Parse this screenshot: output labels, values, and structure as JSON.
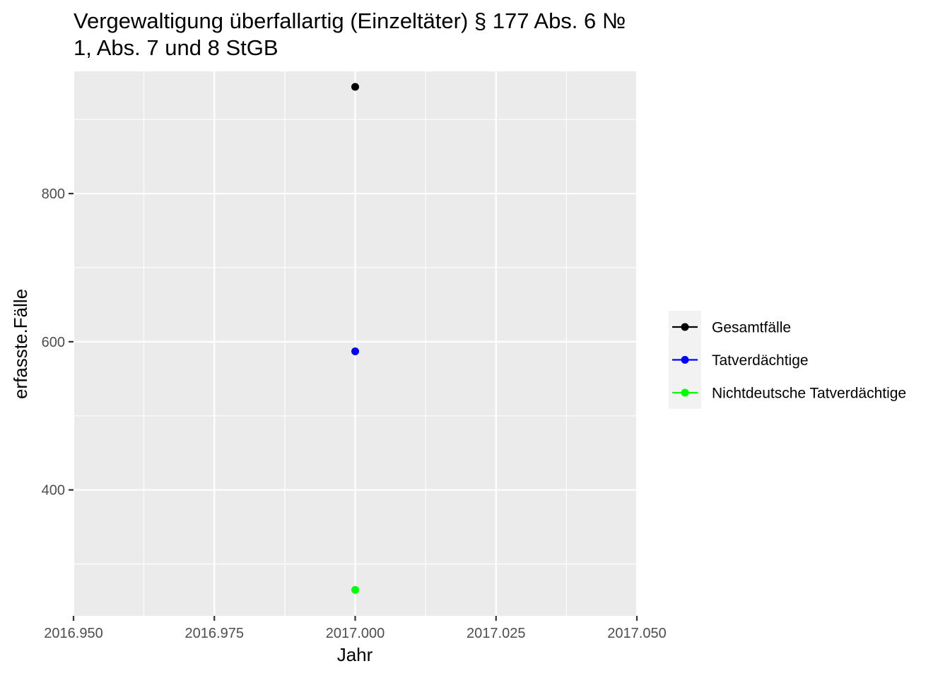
{
  "chart_data": {
    "type": "scatter",
    "title_lines": [
      "Vergewaltigung überfallartig (Einzeltäter) § 177 Abs. 6 №",
      "1, Abs. 7 und 8 StGB"
    ],
    "xlabel": "Jahr",
    "ylabel": "erfasste.Fälle",
    "xlim": [
      2016.95,
      2017.05
    ],
    "ylim": [
      230,
      965
    ],
    "x_ticks": [
      2016.95,
      2016.975,
      2017.0,
      2017.025,
      2017.05
    ],
    "x_tick_labels": [
      "2016.950",
      "2016.975",
      "2017.000",
      "2017.025",
      "2017.050"
    ],
    "y_ticks": [
      400,
      600,
      800
    ],
    "y_tick_labels": [
      "400",
      "600",
      "800"
    ],
    "grid": true,
    "legend_position": "right",
    "series": [
      {
        "name": "Gesamtfälle",
        "color": "#000000",
        "x": [
          2017.0
        ],
        "values": [
          944
        ]
      },
      {
        "name": "Tatverdächtige",
        "color": "#0000ff",
        "x": [
          2017.0
        ],
        "values": [
          587
        ]
      },
      {
        "name": "Nichtdeutsche Tatverdächtige",
        "color": "#00ff00",
        "x": [
          2017.0
        ],
        "values": [
          265
        ]
      }
    ]
  }
}
